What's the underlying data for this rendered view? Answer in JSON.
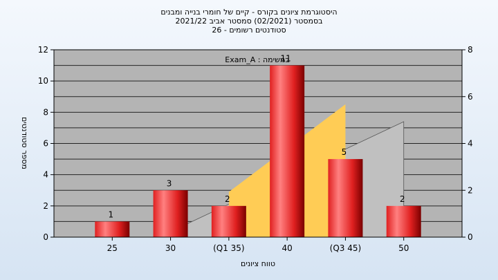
{
  "chart_data": {
    "type": "bar",
    "title_lines": [
      "היסטוגרמת ציונים בקורס - קיים של חומרי בנייה ומבנים",
      "בסמסטר  (02/2021)  סמסטר אביב 2021/22",
      "סטודנטים רשומים - 26"
    ],
    "annotation": "במשימה : Exam_A",
    "xlabel": "טווח ציונים",
    "ylabel": "מספר סטודנטים",
    "categories": [
      "25",
      "30",
      "(Q1 35)",
      "40",
      "(Q3 45)",
      "50"
    ],
    "values": [
      1,
      3,
      2,
      11,
      5,
      2
    ],
    "ylim": [
      0,
      12
    ],
    "y_ticks": [
      0,
      2,
      4,
      6,
      8,
      10,
      12
    ],
    "y2lim": [
      0,
      8
    ],
    "y2_ticks": [
      0,
      2,
      4,
      6,
      8
    ],
    "grid": true,
    "overlay_areas": [
      {
        "type": "area",
        "color": "#c0c0c0",
        "x": [
          29,
          50
        ],
        "y2": [
          0,
          4.93,
          0
        ]
      },
      {
        "type": "area",
        "color": "#ffcc55",
        "x": [
          35,
          45
        ],
        "y2": [
          1.93,
          5.67,
          4.93
        ]
      }
    ],
    "colors": {
      "plot_bg": "#b4b4b4",
      "bar_light": "#ff8080",
      "bar_mid": "#e02020",
      "bar_dark": "#7a0000",
      "gray_area": "#c0c0c0",
      "yellow_area": "#ffcc55",
      "gridline": "#000000"
    }
  }
}
